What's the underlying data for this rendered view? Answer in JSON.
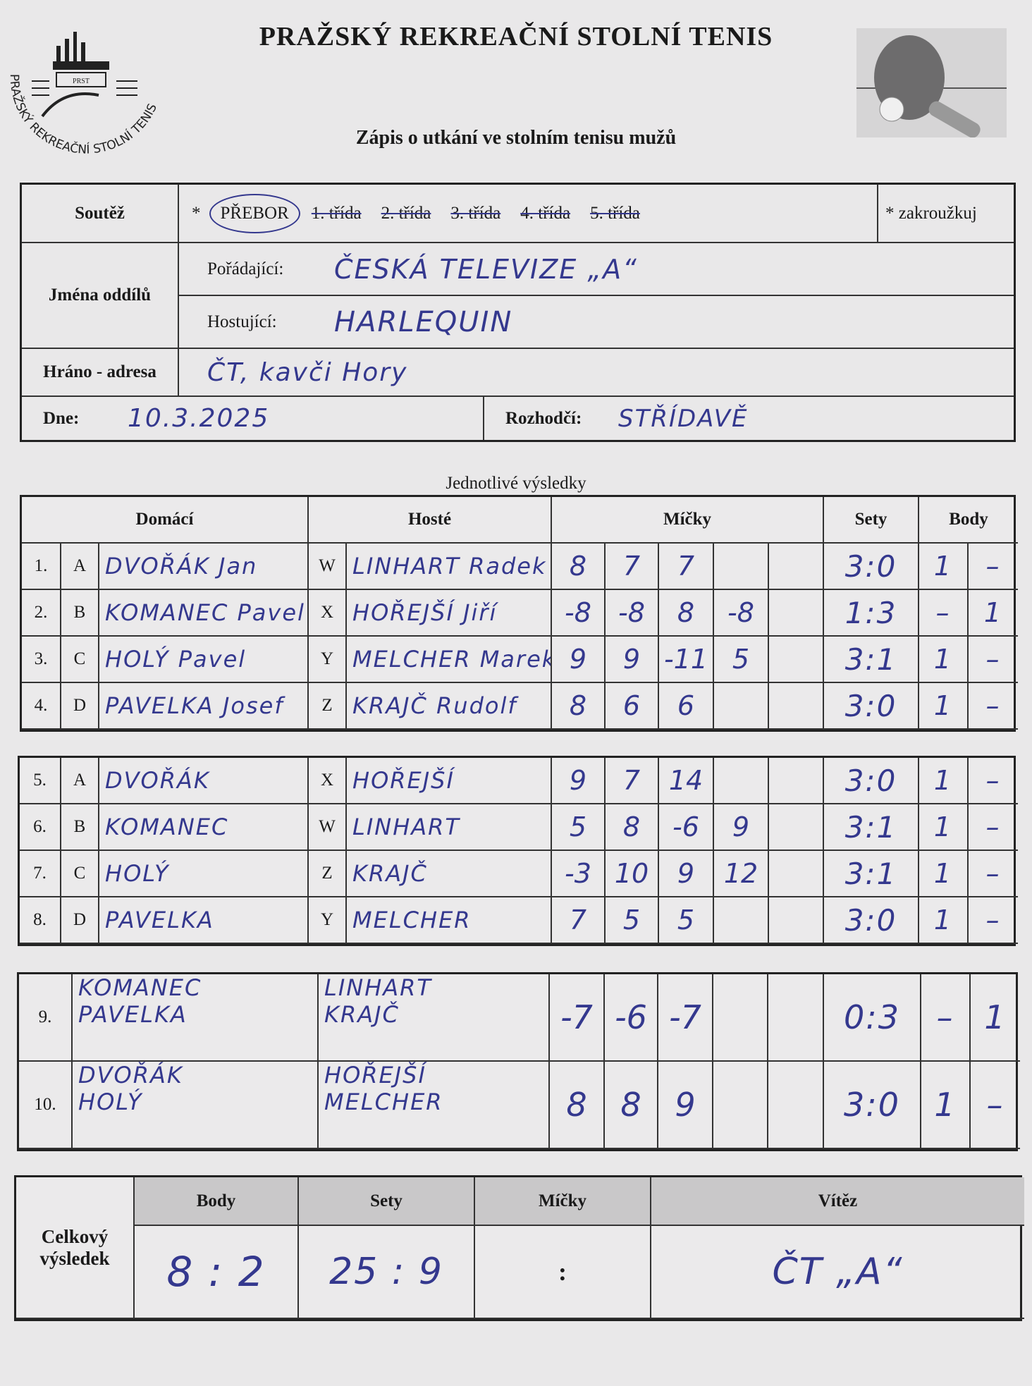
{
  "header": {
    "title": "PRAŽSKÝ REKREAČNÍ STOLNÍ TENIS",
    "subtitle": "Zápis o utkání ve stolním tenisu mužů",
    "logo_text": "PRAŽSKÝ REKREAČNÍ STOLNÍ TENIS",
    "logo_badge": "PRST"
  },
  "info": {
    "soutez_label": "Soutěž",
    "asterisk": "*",
    "selected_class": "PŘEBOR",
    "other_classes": [
      "1. třída",
      "2. třída",
      "3. třída",
      "4. třída",
      "5. třída"
    ],
    "hint": "* zakroužkuj",
    "teams_label": "Jména oddílů",
    "home_label": "Pořádající:",
    "home_team": "ČESKÁ TELEVIZE „A“",
    "away_label": "Hostující:",
    "away_team": "HARLEQUIN",
    "address_label": "Hráno - adresa",
    "address": "ČT, kavči Hory",
    "date_label": "Dne:",
    "date": "10.3.2025",
    "referee_label": "Rozhodčí:",
    "referee": "STŘÍDAVĚ"
  },
  "results": {
    "caption": "Jednotlivé výsledky",
    "headers": {
      "home": "Domácí",
      "away": "Hosté",
      "balls": "Míčky",
      "sets": "Sety",
      "points": "Body"
    },
    "singles": [
      {
        "no": "1.",
        "hl": "A",
        "home": "DVOŘÁK Jan",
        "al": "W",
        "away": "LINHART Radek",
        "balls": [
          "8",
          "7",
          "7",
          "",
          ""
        ],
        "sets": "3:0",
        "hp": "1",
        "ap": "–"
      },
      {
        "no": "2.",
        "hl": "B",
        "home": "KOMANEC Pavel",
        "al": "X",
        "away": "HOŘEJŠÍ Jiří",
        "balls": [
          "-8",
          "-8",
          "8",
          "-8",
          ""
        ],
        "sets": "1:3",
        "hp": "–",
        "ap": "1"
      },
      {
        "no": "3.",
        "hl": "C",
        "home": "HOLÝ Pavel",
        "al": "Y",
        "away": "MELCHER Marek",
        "balls": [
          "9",
          "9",
          "-11",
          "5",
          ""
        ],
        "sets": "3:1",
        "hp": "1",
        "ap": "–"
      },
      {
        "no": "4.",
        "hl": "D",
        "home": "PAVELKA Josef",
        "al": "Z",
        "away": "KRAJČ Rudolf",
        "balls": [
          "8",
          "6",
          "6",
          "",
          ""
        ],
        "sets": "3:0",
        "hp": "1",
        "ap": "–"
      },
      {
        "no": "5.",
        "hl": "A",
        "home": "DVOŘÁK",
        "al": "X",
        "away": "HOŘEJŠÍ",
        "balls": [
          "9",
          "7",
          "14",
          "",
          ""
        ],
        "sets": "3:0",
        "hp": "1",
        "ap": "–"
      },
      {
        "no": "6.",
        "hl": "B",
        "home": "KOMANEC",
        "al": "W",
        "away": "LINHART",
        "balls": [
          "5",
          "8",
          "-6",
          "9",
          ""
        ],
        "sets": "3:1",
        "hp": "1",
        "ap": "–"
      },
      {
        "no": "7.",
        "hl": "C",
        "home": "HOLÝ",
        "al": "Z",
        "away": "KRAJČ",
        "balls": [
          "-3",
          "10",
          "9",
          "12",
          ""
        ],
        "sets": "3:1",
        "hp": "1",
        "ap": "–"
      },
      {
        "no": "8.",
        "hl": "D",
        "home": "PAVELKA",
        "al": "Y",
        "away": "MELCHER",
        "balls": [
          "7",
          "5",
          "5",
          "",
          ""
        ],
        "sets": "3:0",
        "hp": "1",
        "ap": "–"
      }
    ],
    "doubles": [
      {
        "no": "9.",
        "home": [
          "KOMANEC",
          "PAVELKA"
        ],
        "away": [
          "LINHART",
          "KRAJČ"
        ],
        "balls": [
          "-7",
          "-6",
          "-7",
          "",
          ""
        ],
        "sets": "0:3",
        "hp": "–",
        "ap": "1"
      },
      {
        "no": "10.",
        "home": [
          "DVOŘÁK",
          "HOLÝ"
        ],
        "away": [
          "HOŘEJŠÍ",
          "MELCHER"
        ],
        "balls": [
          "8",
          "8",
          "9",
          "",
          ""
        ],
        "sets": "3:0",
        "hp": "1",
        "ap": "–"
      }
    ]
  },
  "summary": {
    "label": "Celkový výsledek",
    "headers": [
      "Body",
      "Sety",
      "Míčky",
      "Vítěz"
    ],
    "points": "8 : 2",
    "sets": "25 : 9",
    "balls": ":",
    "winner": "ČT „A“"
  },
  "colors": {
    "ink": "#34388e",
    "paper": "#e9e8e9",
    "header_fill": "#c9c8c9"
  }
}
